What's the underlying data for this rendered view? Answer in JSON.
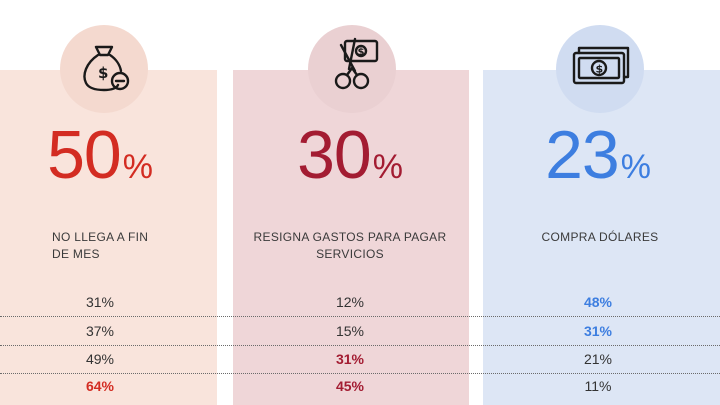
{
  "colors": {
    "panel_red": "#f9e4dc",
    "panel_maroon": "#efd6d8",
    "panel_blue": "#dde6f5",
    "icon_bg_red": "#f4d9cf",
    "icon_bg_maroon": "#ead0d2",
    "icon_bg_blue": "#d0dcf1",
    "red": "#d32c22",
    "maroon": "#a31c32",
    "blue": "#3d7ee0"
  },
  "stats": [
    {
      "icon": "money-bag-minus-icon",
      "value": "50",
      "suffix": "%",
      "label_line1": "NO LLEGA A FIN",
      "label_line2": "DE MES"
    },
    {
      "icon": "scissors-cutting-bill-icon",
      "value": "30",
      "suffix": "%",
      "label_line1": "RESIGNA GASTOS PARA PAGAR",
      "label_line2": "SERVICIOS"
    },
    {
      "icon": "banknotes-dollar-icon",
      "value": "23",
      "suffix": "%",
      "label_line1": "COMPRA DÓLARES",
      "label_line2": ""
    }
  ],
  "rows": [
    [
      "31%",
      "12%",
      "48%"
    ],
    [
      "37%",
      "15%",
      "31%"
    ],
    [
      "49%",
      "31%",
      "21%"
    ],
    [
      "64%",
      "45%",
      "11%"
    ]
  ]
}
